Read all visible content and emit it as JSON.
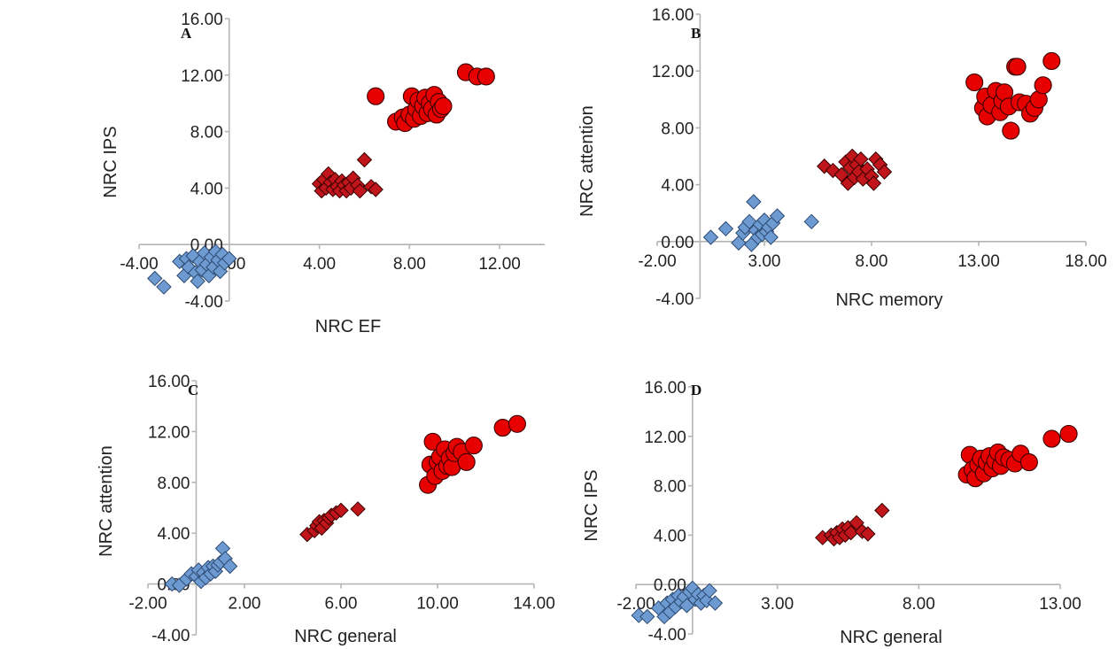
{
  "chart_data": [
    {
      "type": "scatter",
      "panel": "A",
      "xlabel": "NRC EF",
      "ylabel": "NRC IPS",
      "xlim": [
        -4,
        14
      ],
      "ylim": [
        -4,
        16
      ],
      "xticks": [
        "-4.00",
        "0.00",
        "4.00",
        "8.00",
        "12.00"
      ],
      "yticks": [
        "-4.00",
        "0.00",
        "4.00",
        "8.00",
        "12.00",
        "16.00"
      ],
      "series": [
        {
          "marker": "diamond",
          "color": "#6d9bd1",
          "points": [
            [
              -3.3,
              -2.4
            ],
            [
              -2.9,
              -3.0
            ],
            [
              -2.2,
              -1.2
            ],
            [
              -2.0,
              -2.2
            ],
            [
              -1.9,
              -1.0
            ],
            [
              -1.8,
              -1.6
            ],
            [
              -1.6,
              -0.8
            ],
            [
              -1.5,
              -2.0
            ],
            [
              -1.4,
              -2.6
            ],
            [
              -1.3,
              -1.2
            ],
            [
              -1.2,
              -1.8
            ],
            [
              -1.1,
              -0.6
            ],
            [
              -1.0,
              -1.4
            ],
            [
              -0.9,
              -2.2
            ],
            [
              -0.8,
              -0.9
            ],
            [
              -0.7,
              -1.6
            ],
            [
              -0.6,
              -0.5
            ],
            [
              -0.5,
              -1.1
            ],
            [
              -0.4,
              -1.9
            ],
            [
              -0.3,
              -0.7
            ],
            [
              -0.2,
              -1.3
            ],
            [
              0.0,
              -1.0
            ]
          ]
        },
        {
          "marker": "diamond",
          "color": "#c0151a",
          "points": [
            [
              4.0,
              4.3
            ],
            [
              4.1,
              3.8
            ],
            [
              4.2,
              4.6
            ],
            [
              4.3,
              4.0
            ],
            [
              4.4,
              5.0
            ],
            [
              4.5,
              4.4
            ],
            [
              4.6,
              3.9
            ],
            [
              4.7,
              4.6
            ],
            [
              4.8,
              4.1
            ],
            [
              4.9,
              3.8
            ],
            [
              5.0,
              4.5
            ],
            [
              5.1,
              4.2
            ],
            [
              5.2,
              3.8
            ],
            [
              5.3,
              4.4
            ],
            [
              5.4,
              4.0
            ],
            [
              5.5,
              4.7
            ],
            [
              5.7,
              4.2
            ],
            [
              5.8,
              3.8
            ],
            [
              6.0,
              6.0
            ],
            [
              6.3,
              4.1
            ],
            [
              6.5,
              3.9
            ]
          ]
        },
        {
          "marker": "circle",
          "color": "#e60000",
          "points": [
            [
              6.5,
              10.5
            ],
            [
              7.4,
              8.7
            ],
            [
              7.7,
              9.0
            ],
            [
              7.8,
              8.6
            ],
            [
              8.0,
              9.2
            ],
            [
              8.1,
              10.5
            ],
            [
              8.2,
              8.9
            ],
            [
              8.3,
              9.6
            ],
            [
              8.4,
              10.2
            ],
            [
              8.5,
              9.1
            ],
            [
              8.6,
              9.8
            ],
            [
              8.7,
              10.4
            ],
            [
              8.8,
              9.3
            ],
            [
              8.9,
              10.0
            ],
            [
              9.0,
              9.6
            ],
            [
              9.1,
              10.6
            ],
            [
              9.2,
              9.2
            ],
            [
              9.3,
              10.1
            ],
            [
              9.4,
              9.6
            ],
            [
              9.5,
              9.8
            ],
            [
              10.5,
              12.2
            ],
            [
              11.0,
              11.9
            ],
            [
              11.4,
              11.9
            ]
          ]
        }
      ]
    },
    {
      "type": "scatter",
      "panel": "B",
      "xlabel": "NRC memory",
      "ylabel": "NRC attention",
      "xlim": [
        -2,
        18
      ],
      "ylim": [
        -4,
        16
      ],
      "xticks": [
        "-2.00",
        "3.00",
        "8.00",
        "13.00",
        "18.00"
      ],
      "yticks": [
        "-4.00",
        "0.00",
        "4.00",
        "8.00",
        "12.00",
        "16.00"
      ],
      "series": [
        {
          "marker": "diamond",
          "color": "#6d9bd1",
          "points": [
            [
              0.5,
              0.3
            ],
            [
              1.2,
              0.9
            ],
            [
              1.8,
              -0.1
            ],
            [
              2.0,
              0.6
            ],
            [
              2.1,
              1.0
            ],
            [
              2.3,
              1.4
            ],
            [
              2.4,
              -0.2
            ],
            [
              2.5,
              2.8
            ],
            [
              2.6,
              0.8
            ],
            [
              2.7,
              0.3
            ],
            [
              2.8,
              1.2
            ],
            [
              2.9,
              0.5
            ],
            [
              3.0,
              1.5
            ],
            [
              3.1,
              0.7
            ],
            [
              3.2,
              1.0
            ],
            [
              3.3,
              0.3
            ],
            [
              3.4,
              1.3
            ],
            [
              3.6,
              1.8
            ],
            [
              5.2,
              1.4
            ]
          ]
        },
        {
          "marker": "diamond",
          "color": "#c0151a",
          "points": [
            [
              5.8,
              5.3
            ],
            [
              6.2,
              5.0
            ],
            [
              6.6,
              4.7
            ],
            [
              6.8,
              5.6
            ],
            [
              6.9,
              4.1
            ],
            [
              7.0,
              5.2
            ],
            [
              7.1,
              6.0
            ],
            [
              7.2,
              4.5
            ],
            [
              7.3,
              5.4
            ],
            [
              7.4,
              4.9
            ],
            [
              7.5,
              5.8
            ],
            [
              7.6,
              4.4
            ],
            [
              7.8,
              5.1
            ],
            [
              8.0,
              4.6
            ],
            [
              8.1,
              4.1
            ],
            [
              8.2,
              5.8
            ],
            [
              8.4,
              5.4
            ],
            [
              8.6,
              4.9
            ]
          ]
        },
        {
          "marker": "circle",
          "color": "#e60000",
          "points": [
            [
              12.8,
              11.2
            ],
            [
              13.2,
              9.4
            ],
            [
              13.3,
              10.2
            ],
            [
              13.4,
              8.8
            ],
            [
              13.6,
              9.6
            ],
            [
              13.8,
              10.6
            ],
            [
              14.0,
              9.1
            ],
            [
              14.1,
              9.9
            ],
            [
              14.2,
              10.5
            ],
            [
              14.4,
              9.5
            ],
            [
              14.5,
              7.8
            ],
            [
              14.7,
              12.3
            ],
            [
              14.8,
              12.3
            ],
            [
              14.9,
              9.8
            ],
            [
              15.2,
              9.7
            ],
            [
              15.4,
              9.0
            ],
            [
              15.6,
              9.4
            ],
            [
              15.8,
              10.0
            ],
            [
              16.0,
              11.0
            ],
            [
              16.4,
              12.7
            ]
          ]
        }
      ]
    },
    {
      "type": "scatter",
      "panel": "C",
      "xlabel": "NRC general",
      "ylabel": "NRC attention",
      "xlim": [
        -2,
        14
      ],
      "ylim": [
        -4,
        16
      ],
      "xticks": [
        "-2.00",
        "2.00",
        "6.00",
        "10.00",
        "14.00"
      ],
      "yticks": [
        "-4.00",
        "0.00",
        "4.00",
        "8.00",
        "12.00",
        "16.00"
      ],
      "series": [
        {
          "marker": "diamond",
          "color": "#6d9bd1",
          "points": [
            [
              -1.0,
              0.0
            ],
            [
              -0.7,
              -0.1
            ],
            [
              -0.4,
              0.4
            ],
            [
              -0.2,
              0.8
            ],
            [
              0.0,
              0.6
            ],
            [
              0.1,
              1.1
            ],
            [
              0.2,
              0.2
            ],
            [
              0.3,
              0.9
            ],
            [
              0.4,
              0.5
            ],
            [
              0.5,
              1.3
            ],
            [
              0.6,
              0.8
            ],
            [
              0.7,
              1.4
            ],
            [
              0.8,
              1.0
            ],
            [
              0.9,
              1.5
            ],
            [
              1.0,
              1.7
            ],
            [
              1.1,
              2.8
            ],
            [
              1.2,
              2.0
            ],
            [
              1.4,
              1.4
            ]
          ]
        },
        {
          "marker": "diamond",
          "color": "#c0151a",
          "points": [
            [
              4.6,
              3.9
            ],
            [
              4.9,
              4.2
            ],
            [
              5.0,
              4.6
            ],
            [
              5.1,
              4.9
            ],
            [
              5.2,
              4.4
            ],
            [
              5.3,
              5.0
            ],
            [
              5.4,
              4.8
            ],
            [
              5.5,
              5.2
            ],
            [
              5.6,
              5.4
            ],
            [
              5.8,
              5.6
            ],
            [
              6.0,
              5.8
            ],
            [
              6.7,
              5.9
            ]
          ]
        },
        {
          "marker": "circle",
          "color": "#e60000",
          "points": [
            [
              9.6,
              7.8
            ],
            [
              9.7,
              9.4
            ],
            [
              9.8,
              11.2
            ],
            [
              9.9,
              8.5
            ],
            [
              10.0,
              9.6
            ],
            [
              10.1,
              10.0
            ],
            [
              10.2,
              8.9
            ],
            [
              10.3,
              10.6
            ],
            [
              10.4,
              9.3
            ],
            [
              10.5,
              9.9
            ],
            [
              10.6,
              9.2
            ],
            [
              10.7,
              10.3
            ],
            [
              10.8,
              10.8
            ],
            [
              11.0,
              10.4
            ],
            [
              11.2,
              9.6
            ],
            [
              11.5,
              10.9
            ],
            [
              12.7,
              12.3
            ],
            [
              13.3,
              12.6
            ]
          ]
        }
      ]
    },
    {
      "type": "scatter",
      "panel": "D",
      "xlabel": "NRC general",
      "ylabel": "NRC IPS",
      "xlim": [
        -2,
        13
      ],
      "ylim": [
        -4,
        16
      ],
      "xticks": [
        "-2.00",
        "3.00",
        "8.00",
        "13.00"
      ],
      "yticks": [
        "-4.00",
        "0.00",
        "4.00",
        "8.00",
        "12.00",
        "16.00"
      ],
      "series": [
        {
          "marker": "diamond",
          "color": "#6d9bd1",
          "points": [
            [
              -1.9,
              -2.5
            ],
            [
              -1.6,
              -2.6
            ],
            [
              -1.2,
              -1.9
            ],
            [
              -1.0,
              -2.6
            ],
            [
              -0.9,
              -1.5
            ],
            [
              -0.8,
              -2.2
            ],
            [
              -0.7,
              -1.2
            ],
            [
              -0.6,
              -1.8
            ],
            [
              -0.5,
              -0.9
            ],
            [
              -0.4,
              -1.4
            ],
            [
              -0.3,
              -1.0
            ],
            [
              -0.2,
              -1.7
            ],
            [
              -0.1,
              -0.6
            ],
            [
              0.0,
              -0.3
            ],
            [
              0.1,
              -1.2
            ],
            [
              0.2,
              -0.8
            ],
            [
              0.3,
              -1.5
            ],
            [
              0.4,
              -0.9
            ],
            [
              0.5,
              -1.3
            ],
            [
              0.6,
              -0.5
            ],
            [
              0.8,
              -1.5
            ]
          ]
        },
        {
          "marker": "diamond",
          "color": "#c0151a",
          "points": [
            [
              4.6,
              3.8
            ],
            [
              4.9,
              4.0
            ],
            [
              5.0,
              3.7
            ],
            [
              5.1,
              4.2
            ],
            [
              5.2,
              3.8
            ],
            [
              5.3,
              4.5
            ],
            [
              5.4,
              4.0
            ],
            [
              5.5,
              4.6
            ],
            [
              5.6,
              4.2
            ],
            [
              5.8,
              5.0
            ],
            [
              6.0,
              4.3
            ],
            [
              6.2,
              4.1
            ],
            [
              6.7,
              6.0
            ]
          ]
        },
        {
          "marker": "circle",
          "color": "#e60000",
          "points": [
            [
              9.7,
              8.9
            ],
            [
              9.8,
              10.5
            ],
            [
              9.9,
              9.3
            ],
            [
              10.0,
              8.6
            ],
            [
              10.1,
              9.7
            ],
            [
              10.2,
              10.2
            ],
            [
              10.3,
              9.0
            ],
            [
              10.4,
              9.9
            ],
            [
              10.5,
              10.4
            ],
            [
              10.6,
              9.4
            ],
            [
              10.7,
              10.0
            ],
            [
              10.8,
              10.7
            ],
            [
              10.9,
              9.6
            ],
            [
              11.0,
              10.3
            ],
            [
              11.2,
              10.1
            ],
            [
              11.4,
              9.8
            ],
            [
              11.6,
              10.6
            ],
            [
              11.9,
              9.9
            ],
            [
              12.7,
              11.8
            ],
            [
              13.3,
              12.2
            ]
          ]
        }
      ]
    }
  ]
}
